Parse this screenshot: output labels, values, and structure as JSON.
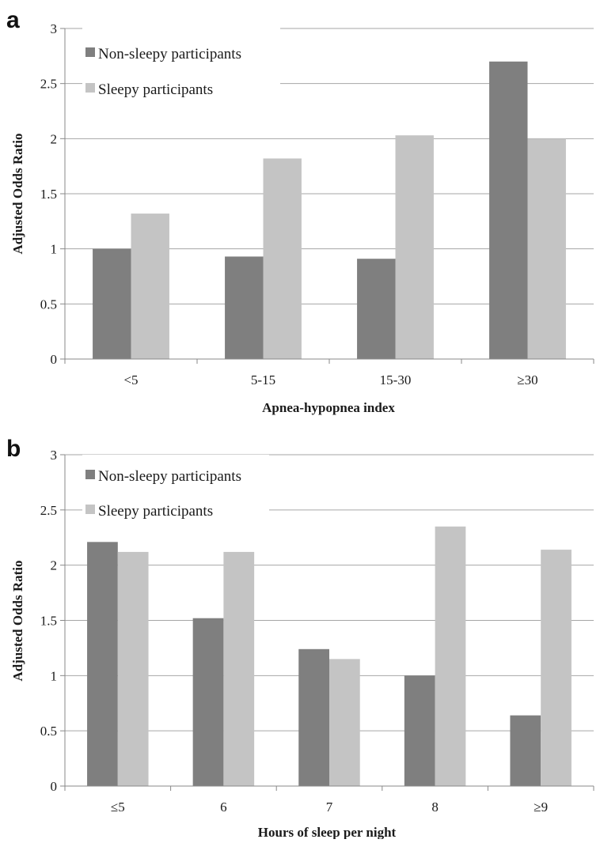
{
  "colors": {
    "series_dark": "#7f7f7f",
    "series_light": "#c4c4c4",
    "gridline": "#a6a6a6",
    "axis": "#888888",
    "background": "#ffffff"
  },
  "chart_data": [
    {
      "panel_label": "a",
      "type": "bar",
      "title": "",
      "xlabel": "Apnea-hypopnea index",
      "ylabel": "Adjusted Odds Ratio",
      "categories": [
        "<5",
        "5-15",
        "15-30",
        "≥30"
      ],
      "series": [
        {
          "name": "Non-sleepy participants",
          "values": [
            1.0,
            0.93,
            0.91,
            2.7
          ]
        },
        {
          "name": "Sleepy participants",
          "values": [
            1.32,
            1.82,
            2.03,
            2.0
          ]
        }
      ],
      "ylim": [
        0,
        3
      ],
      "yticks": [
        0,
        0.5,
        1,
        1.5,
        2,
        2.5,
        3
      ],
      "ytick_labels": [
        "0",
        "0.5",
        "1",
        "1.5",
        "2",
        "2.5",
        "3"
      ],
      "grid": true,
      "legend_position": "top-left"
    },
    {
      "panel_label": "b",
      "type": "bar",
      "title": "",
      "xlabel": "Hours of sleep per night",
      "ylabel": "Adjusted Odds Ratio",
      "categories": [
        "≤5",
        "6",
        "7",
        "8",
        "≥9"
      ],
      "series": [
        {
          "name": "Non-sleepy participants",
          "values": [
            2.21,
            1.52,
            1.24,
            1.0,
            0.64
          ]
        },
        {
          "name": "Sleepy participants",
          "values": [
            2.12,
            2.12,
            1.15,
            2.35,
            2.14
          ]
        }
      ],
      "ylim": [
        0,
        3
      ],
      "yticks": [
        0,
        0.5,
        1,
        1.5,
        2,
        2.5,
        3
      ],
      "ytick_labels": [
        "0",
        "0.5",
        "1",
        "1.5",
        "2",
        "2.5",
        "3"
      ],
      "grid": true,
      "legend_position": "top-left"
    }
  ]
}
